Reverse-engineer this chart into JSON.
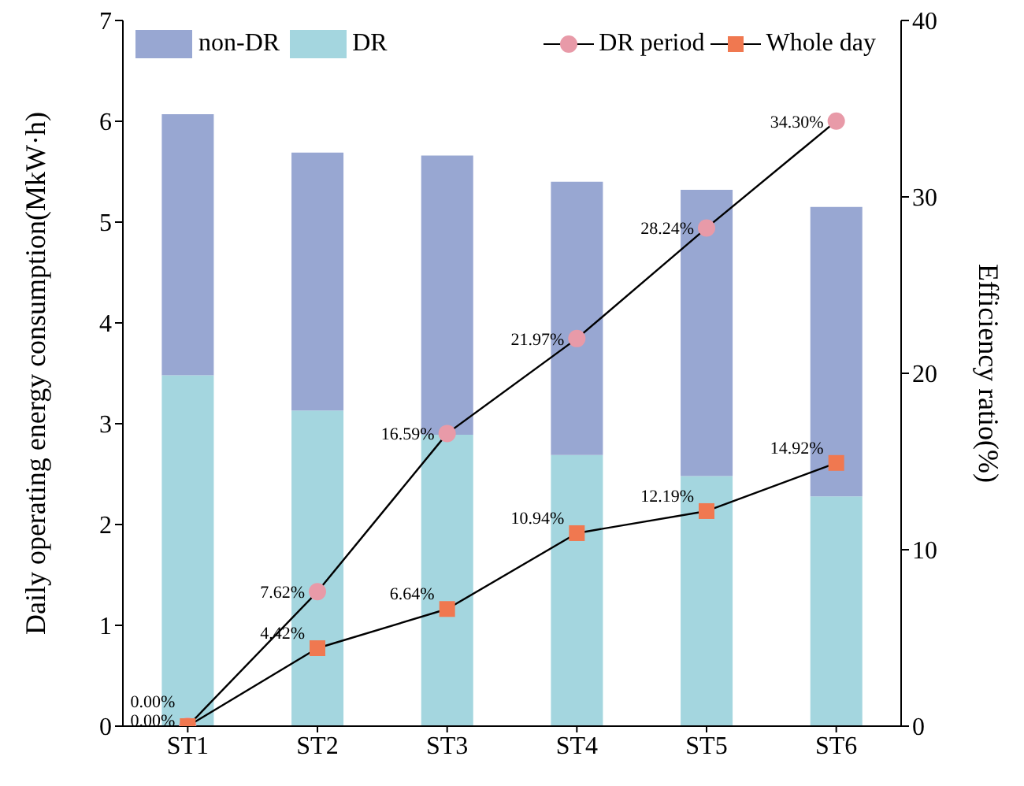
{
  "chart_data": {
    "type": "bar",
    "stacked": true,
    "categories": [
      "ST1",
      "ST2",
      "ST3",
      "ST4",
      "ST5",
      "ST6"
    ],
    "ylabel": "Daily operating energy consumption(MkW·h)",
    "y2label": "Efficiency ratio(%)",
    "ylim": [
      0,
      7
    ],
    "yticks": [
      0,
      1,
      2,
      3,
      4,
      5,
      6,
      7
    ],
    "y2lim": [
      0,
      40
    ],
    "y2ticks": [
      0,
      10,
      20,
      30,
      40
    ],
    "legend": "top",
    "grid": false,
    "series": [
      {
        "name": "DR",
        "color": "#a4d6df",
        "values": [
          3.48,
          3.13,
          2.89,
          2.69,
          2.48,
          2.28
        ]
      },
      {
        "name": "non-DR",
        "color": "#98a7d2",
        "values": [
          2.59,
          2.56,
          2.77,
          2.71,
          2.84,
          2.87
        ]
      },
      {
        "name": "DR period",
        "type": "line",
        "axis": "y2",
        "marker": "circle",
        "color": "#e89aa8",
        "values": [
          0.0,
          7.62,
          16.59,
          21.97,
          28.24,
          34.3
        ],
        "value_labels": [
          "0.00%",
          "7.62%",
          "16.59%",
          "21.97%",
          "28.24%",
          "34.30%"
        ]
      },
      {
        "name": "Whole day",
        "type": "line",
        "axis": "y2",
        "marker": "square",
        "color": "#f07850",
        "values": [
          0.0,
          4.42,
          6.64,
          10.94,
          12.19,
          14.92
        ],
        "value_labels": [
          "0.00%",
          "4.42%",
          "6.64%",
          "10.94%",
          "12.19%",
          "14.92%"
        ]
      }
    ]
  }
}
